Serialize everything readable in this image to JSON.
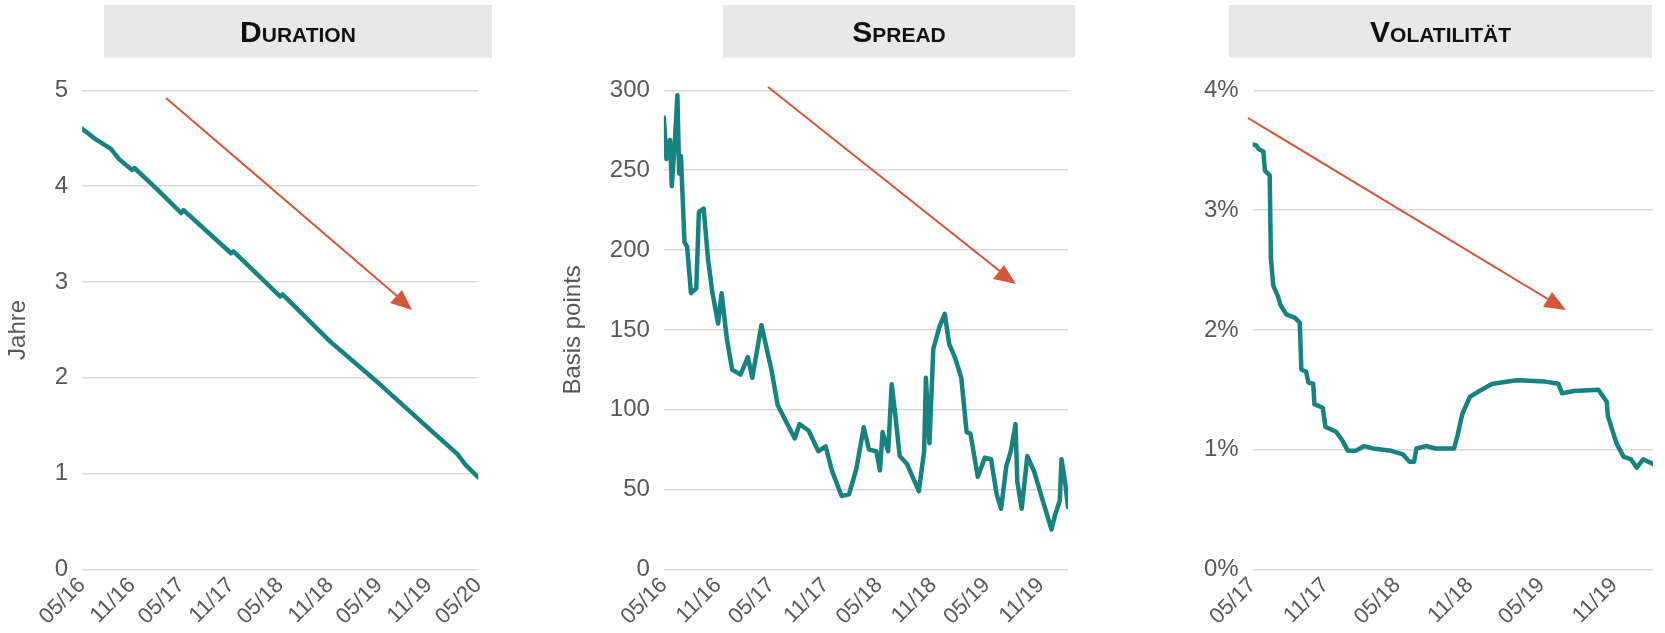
{
  "chart_data": [
    {
      "type": "line",
      "title": "Duration",
      "ylabel": "Jahre",
      "color": "#17827e",
      "marker": "none",
      "grid": "y",
      "x": [
        "2016-05-01",
        "2016-06-15",
        "2016-08-15",
        "2016-09-15",
        "2016-11-01",
        "2016-11-10",
        "2017-02-01",
        "2017-05-01",
        "2017-05-10",
        "2017-11-01",
        "2017-11-10",
        "2018-05-01",
        "2018-05-10",
        "2018-11-01",
        "2019-05-01",
        "2019-11-01",
        "2020-02-15",
        "2020-03-15",
        "2020-05-01"
      ],
      "values": [
        4.6,
        4.5,
        4.39,
        4.28,
        4.17,
        4.19,
        3.97,
        3.72,
        3.75,
        3.3,
        3.32,
        2.85,
        2.87,
        2.38,
        1.94,
        1.47,
        1.2,
        1.09,
        0.96
      ],
      "xlim": [
        "2016-05-01",
        "2020-05-01"
      ],
      "ylim": [
        0,
        5
      ],
      "yticks": [
        0,
        1,
        2,
        3,
        4,
        5
      ],
      "xticks": [
        {
          "value": "2016-05",
          "label": "05/16"
        },
        {
          "value": "2016-11",
          "label": "11/16"
        },
        {
          "value": "2017-05",
          "label": "05/17"
        },
        {
          "value": "2017-11",
          "label": "11/17"
        },
        {
          "value": "2018-05",
          "label": "05/18"
        },
        {
          "value": "2018-11",
          "label": "11/18"
        },
        {
          "value": "2019-05",
          "label": "05/19"
        },
        {
          "value": "2019-11",
          "label": "11/19"
        },
        {
          "value": "2020-05",
          "label": "05/20"
        }
      ]
    },
    {
      "type": "line",
      "title": "Spread",
      "ylabel": "Basis points",
      "color": "#17827e",
      "marker": "none",
      "grid": "y",
      "x": [
        "2016-05-01",
        "2016-05-10",
        "2016-05-22",
        "2016-05-28",
        "2016-06-07",
        "2016-06-16",
        "2016-06-22",
        "2016-06-28",
        "2016-07-10",
        "2016-07-19",
        "2016-08-01",
        "2016-08-19",
        "2016-08-28",
        "2016-09-13",
        "2016-09-28",
        "2016-10-13",
        "2016-11-01",
        "2016-11-13",
        "2016-12-01",
        "2016-12-19",
        "2017-01-16",
        "2017-02-10",
        "2017-02-25",
        "2017-03-28",
        "2017-05-01",
        "2017-05-22",
        "2017-06-13",
        "2017-07-19",
        "2017-08-04",
        "2017-09-04",
        "2017-10-07",
        "2017-11-01",
        "2017-11-22",
        "2017-12-25",
        "2018-01-19",
        "2018-02-13",
        "2018-03-10",
        "2018-03-28",
        "2018-04-22",
        "2018-05-04",
        "2018-05-13",
        "2018-06-01",
        "2018-06-13",
        "2018-06-25",
        "2018-07-10",
        "2018-08-04",
        "2018-09-13",
        "2018-10-01",
        "2018-10-07",
        "2018-10-19",
        "2018-11-01",
        "2018-11-22",
        "2018-12-10",
        "2018-12-25",
        "2019-01-13",
        "2019-02-04",
        "2019-02-22",
        "2019-03-07",
        "2019-04-01",
        "2019-04-25",
        "2019-05-16",
        "2019-06-04",
        "2019-06-19",
        "2019-07-07",
        "2019-07-22",
        "2019-08-07",
        "2019-08-13",
        "2019-08-28",
        "2019-09-16",
        "2019-10-10",
        "2019-11-01",
        "2019-12-07",
        "2019-12-19",
        "2020-01-04",
        "2020-01-10",
        "2020-01-22",
        "2020-02-01"
      ],
      "values": [
        283,
        257,
        269,
        240,
        267,
        297,
        248,
        259,
        205,
        202,
        173,
        176,
        224,
        226,
        194,
        173,
        154,
        173,
        144,
        125,
        122,
        133,
        120,
        153,
        125,
        103,
        95,
        82,
        91,
        87,
        74,
        77,
        62,
        46,
        47,
        63,
        89,
        75,
        74,
        62,
        86,
        74,
        116,
        97,
        71,
        66,
        49,
        74,
        120,
        79,
        138,
        152,
        160,
        141,
        133,
        120,
        86,
        85,
        58,
        70,
        69,
        47,
        38,
        65,
        74,
        91,
        55,
        38,
        71,
        61,
        47,
        25,
        34,
        43,
        69,
        55,
        39
      ],
      "xlim": [
        "2016-05-01",
        "2020-02-01"
      ],
      "ylim": [
        0,
        300
      ],
      "yticks": [
        0,
        50,
        100,
        150,
        200,
        250,
        300
      ],
      "xticks": [
        {
          "value": "2016-05",
          "label": "05/16"
        },
        {
          "value": "2016-11",
          "label": "11/16"
        },
        {
          "value": "2017-05",
          "label": "05/17"
        },
        {
          "value": "2017-11",
          "label": "11/17"
        },
        {
          "value": "2018-05",
          "label": "05/18"
        },
        {
          "value": "2018-11",
          "label": "11/18"
        },
        {
          "value": "2019-05",
          "label": "05/19"
        },
        {
          "value": "2019-11",
          "label": "11/19"
        }
      ]
    },
    {
      "type": "line",
      "title": "Volatilität",
      "color": "#17827e",
      "marker": "none",
      "grid": "y",
      "x": [
        "2017-05-01",
        "2017-05-10",
        "2017-05-16",
        "2017-05-28",
        "2017-06-01",
        "2017-06-13",
        "2017-06-16",
        "2017-06-22",
        "2017-07-04",
        "2017-07-10",
        "2017-07-25",
        "2017-08-16",
        "2017-08-28",
        "2017-09-01",
        "2017-09-13",
        "2017-09-19",
        "2017-10-01",
        "2017-10-04",
        "2017-10-25",
        "2017-11-01",
        "2017-11-28",
        "2017-12-13",
        "2017-12-28",
        "2018-01-16",
        "2018-02-07",
        "2018-03-01",
        "2018-04-16",
        "2018-05-16",
        "2018-06-01",
        "2018-06-13",
        "2018-06-19",
        "2018-07-13",
        "2018-08-07",
        "2018-09-22",
        "2018-10-01",
        "2018-10-13",
        "2018-11-01",
        "2018-11-25",
        "2018-12-28",
        "2019-02-28",
        "2019-05-07",
        "2019-06-13",
        "2019-06-22",
        "2019-07-22",
        "2019-09-22",
        "2019-10-13",
        "2019-10-16",
        "2019-11-07",
        "2019-11-25",
        "2019-12-13",
        "2019-12-28",
        "2020-01-13",
        "2020-02-07"
      ],
      "values": [
        3.55,
        3.54,
        3.51,
        3.49,
        3.33,
        3.29,
        2.6,
        2.37,
        2.28,
        2.21,
        2.13,
        2.1,
        2.06,
        1.67,
        1.65,
        1.56,
        1.55,
        1.38,
        1.35,
        1.19,
        1.15,
        1.08,
        0.99,
        0.99,
        1.03,
        1.01,
        0.99,
        0.96,
        0.9,
        0.9,
        1.01,
        1.03,
        1.01,
        1.01,
        1.12,
        1.3,
        1.44,
        1.49,
        1.55,
        1.58,
        1.57,
        1.55,
        1.47,
        1.49,
        1.5,
        1.4,
        1.28,
        1.05,
        0.94,
        0.92,
        0.85,
        0.92,
        0.88
      ],
      "xlim": [
        "2017-05-01",
        "2020-02-07"
      ],
      "ylim": [
        0,
        4
      ],
      "yticks": [
        {
          "value": 0,
          "label": "0%"
        },
        {
          "value": 1,
          "label": "1%"
        },
        {
          "value": 2,
          "label": "2%"
        },
        {
          "value": 3,
          "label": "3%"
        },
        {
          "value": 4,
          "label": "4%"
        }
      ],
      "xticks": [
        {
          "value": "2017-05",
          "label": "05/17"
        },
        {
          "value": "2017-11",
          "label": "11/17"
        },
        {
          "value": "2018-05",
          "label": "05/18"
        },
        {
          "value": "2018-11",
          "label": "11/18"
        },
        {
          "value": "2019-05",
          "label": "05/19"
        },
        {
          "value": "2019-11",
          "label": "11/19"
        }
      ]
    }
  ]
}
